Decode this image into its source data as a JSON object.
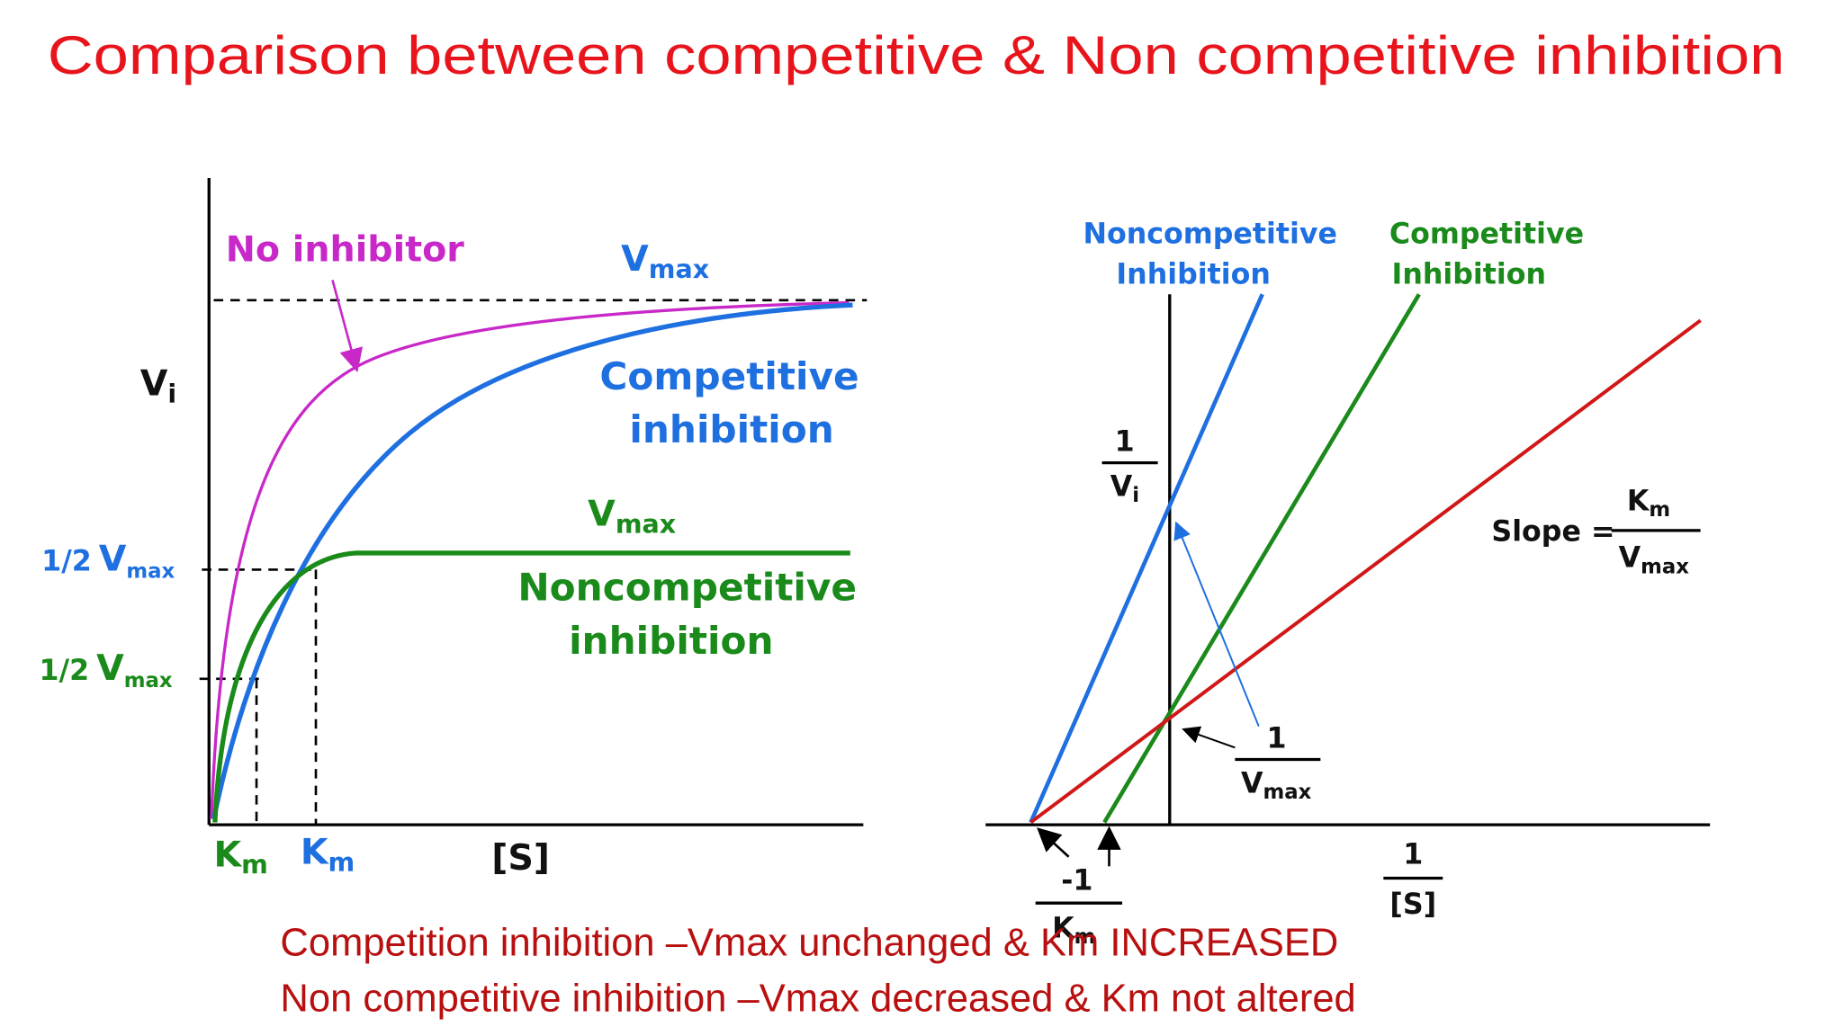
{
  "title": "Comparison between competitive & Non competitive inhibition",
  "left_graph": {
    "y_axis_label": {
      "main": "V",
      "sub": "i"
    },
    "x_axis_label": "[S]",
    "no_inhibitor": "No inhibitor",
    "vmax_top": {
      "main": "V",
      "sub": "max"
    },
    "competitive_label": [
      "Competitive",
      "inhibition"
    ],
    "vmax_noncompetitive": {
      "main": "V",
      "sub": "max"
    },
    "noncompetitive_label": [
      "Noncompetitive",
      "inhibition"
    ],
    "half_vmax_competitive": {
      "prefix": "1/2",
      "main": "V",
      "sub": "max"
    },
    "half_vmax_noncompetitive": {
      "prefix": "1/2",
      "main": "V",
      "sub": "max"
    },
    "km_noncompetitive": {
      "main": "K",
      "sub": "m"
    },
    "km_competitive": {
      "main": "K",
      "sub": "m"
    }
  },
  "right_graph": {
    "noncompetitive_label": [
      "Noncompetitive",
      "Inhibition"
    ],
    "competitive_label": [
      "Competitive",
      "Inhibition"
    ],
    "y_axis_label": {
      "numerator": "1",
      "denominator": {
        "main": "V",
        "sub": "i"
      }
    },
    "slope": {
      "label": "Slope =",
      "numerator": {
        "main": "K",
        "sub": "m"
      },
      "denominator": {
        "main": "V",
        "sub": "max"
      }
    },
    "y_intercept": {
      "numerator": "1",
      "denominator": {
        "main": "V",
        "sub": "max"
      }
    },
    "x_intercept": {
      "numerator": "-1",
      "denominator": {
        "main": "K",
        "sub": "m"
      }
    },
    "x_axis_label": {
      "numerator": "1",
      "denominator": "[S]"
    }
  },
  "notes": [
    "Competition inhibition –Vmax unchanged & Km INCREASED",
    "Non competitive inhibition –Vmax decreased & Km not altered"
  ]
}
